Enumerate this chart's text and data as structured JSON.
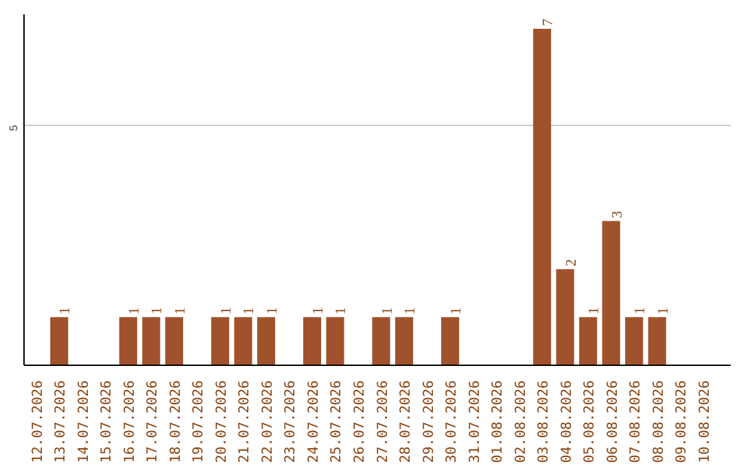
{
  "chart_data": {
    "type": "bar",
    "categories": [
      "12.07.2026",
      "13.07.2026",
      "14.07.2026",
      "15.07.2026",
      "16.07.2026",
      "17.07.2026",
      "18.07.2026",
      "19.07.2026",
      "20.07.2026",
      "21.07.2026",
      "22.07.2026",
      "23.07.2026",
      "24.07.2026",
      "25.07.2026",
      "26.07.2026",
      "27.07.2026",
      "28.07.2026",
      "29.07.2026",
      "30.07.2026",
      "31.07.2026",
      "01.08.2026",
      "02.08.2026",
      "03.08.2026",
      "04.08.2026",
      "05.08.2026",
      "06.08.2026",
      "07.08.2026",
      "08.08.2026",
      "09.08.2026",
      "10.08.2026"
    ],
    "values": [
      0,
      1,
      0,
      0,
      1,
      1,
      1,
      0,
      1,
      1,
      1,
      0,
      1,
      1,
      0,
      1,
      1,
      0,
      1,
      0,
      0,
      0,
      7,
      2,
      1,
      3,
      1,
      1,
      0,
      0
    ],
    "value_labels": [
      null,
      "1",
      null,
      null,
      "1",
      "1",
      "1",
      null,
      "1",
      "1",
      "1",
      null,
      "1",
      "1",
      null,
      "1",
      "1",
      null,
      "1",
      null,
      null,
      null,
      "7",
      "2",
      "1",
      "3",
      "1",
      "1",
      null,
      null
    ],
    "color": "#a0522d",
    "ylim": [
      0,
      7.3
    ],
    "yticks": [
      5
    ],
    "grid": "y"
  }
}
